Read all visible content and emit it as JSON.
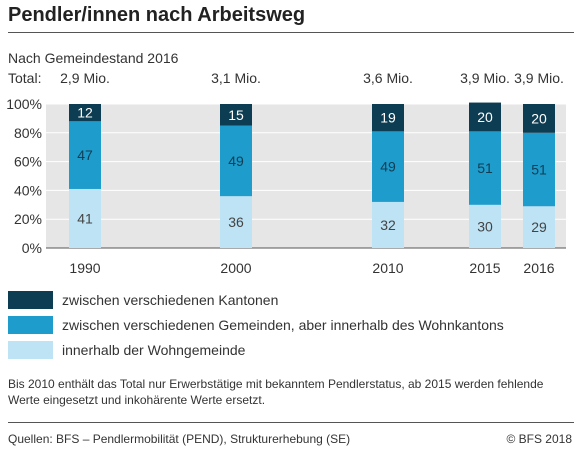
{
  "header": {
    "title": "Pendler/innen nach Arbeitsweg",
    "subtitle": "Nach Gemeindestand 2016",
    "total_label": "Total:"
  },
  "totals": [
    "2,9 Mio.",
    "3,1 Mio.",
    "3,6 Mio.",
    "3,9 Mio.",
    "3,9 Mio."
  ],
  "colors": {
    "kantone": "#0d3d52",
    "gemeinden": "#1e9ccb",
    "wohngemeinde": "#bde3f5",
    "plot_bg": "#e6e6e6"
  },
  "legend": [
    {
      "label": "zwischen verschiedenen Kantonen",
      "color": "#0d3d52"
    },
    {
      "label": "zwischen verschiedenen Gemeinden, aber innerhalb des Wohnkantons",
      "color": "#1e9ccb"
    },
    {
      "label": "innerhalb der Wohngemeinde",
      "color": "#bde3f5"
    }
  ],
  "note": "Bis 2010 enthält das Total nur Erwerbstätige mit bekanntem Pendlerstatus, ab 2015 werden fehlende Werte eingesetzt und inkohärente Werte ersetzt.",
  "footer": {
    "sources": "Quellen: BFS – Pendlermobilität (PEND), Strukturerhebung (SE)",
    "copyright": "© BFS 2018"
  },
  "chart_data": {
    "type": "bar",
    "stacked": true,
    "categories": [
      "1990",
      "2000",
      "2010",
      "2015",
      "2016"
    ],
    "series": [
      {
        "name": "innerhalb der Wohngemeinde",
        "values": [
          41,
          36,
          32,
          30,
          29
        ]
      },
      {
        "name": "zwischen verschiedenen Gemeinden, aber innerhalb des Wohnkantons",
        "values": [
          47,
          49,
          49,
          51,
          51
        ]
      },
      {
        "name": "zwischen verschiedenen Kantonen",
        "values": [
          12,
          15,
          19,
          20,
          20
        ]
      }
    ],
    "y_ticks": [
      "0%",
      "20%",
      "40%",
      "60%",
      "80%",
      "100%"
    ],
    "ylim": [
      0,
      100
    ],
    "grid": true,
    "legend_position": "bottom"
  }
}
